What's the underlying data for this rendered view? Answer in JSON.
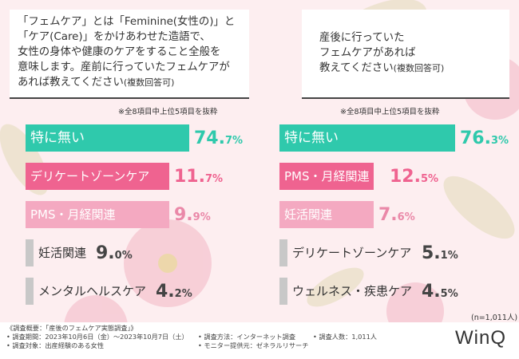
{
  "colors": {
    "teal": "#2fc9ac",
    "pink": "#ef6390",
    "light_pink": "#f4a9c1",
    "gray": "#c8c8c8",
    "background": "#fdeef0"
  },
  "left": {
    "question": [
      "「フェムケア」とは「Feminine(女性の)」と",
      "「ケア(Care)」をかけあわせた造語で、",
      "女性の身体や健康のケアをすること全般を",
      "意味します。産前に行っていたフェムケアが"
    ],
    "question_last": "あれば教えてください",
    "question_suffix": "(複数回答可)",
    "note": "※全8項目中上位5項目を抜粋"
  },
  "right": {
    "question": [
      "産後に行っていた",
      "フェムケアがあれば"
    ],
    "question_last": "教えてください",
    "question_suffix": "(複数回答可)",
    "note": "※全8項目中上位5項目を抜粋",
    "n_label": "(n=1,011人)"
  },
  "chart_data": [
    {
      "type": "bar",
      "orientation": "horizontal",
      "title": "産前に行っていたフェムケア",
      "categories": [
        "特に無い",
        "デリケートゾーンケア",
        "PMS・月経関連",
        "妊活関連",
        "メンタルヘルスケア"
      ],
      "values": [
        74.7,
        11.7,
        9.9,
        9.0,
        4.2
      ],
      "value_labels": [
        {
          "int": "74.",
          "dec": "7%"
        },
        {
          "int": "11.",
          "dec": "7%"
        },
        {
          "int": "9.",
          "dec": "9%"
        },
        {
          "int": "9.",
          "dec": "0%"
        },
        {
          "int": "4.",
          "dec": "2%"
        }
      ],
      "bar_colors": [
        "teal",
        "pink",
        "light_pink",
        "gray",
        "gray"
      ],
      "unit": "%"
    },
    {
      "type": "bar",
      "orientation": "horizontal",
      "title": "産後に行っていたフェムケア",
      "categories": [
        "特に無い",
        "PMS・月経関連",
        "妊活関連",
        "デリケートゾーンケア",
        "ウェルネス・疾患ケア"
      ],
      "values": [
        76.3,
        12.5,
        7.6,
        5.1,
        4.5
      ],
      "value_labels": [
        {
          "int": "76.",
          "dec": "3%"
        },
        {
          "int": "12.",
          "dec": "5%"
        },
        {
          "int": "7.",
          "dec": "6%"
        },
        {
          "int": "5.",
          "dec": "1%"
        },
        {
          "int": "4.",
          "dec": "5%"
        }
      ],
      "bar_colors": [
        "teal",
        "pink",
        "light_pink",
        "gray",
        "gray"
      ],
      "unit": "%"
    }
  ],
  "footer": {
    "lines": [
      "《調査概要：「産後のフェムケア実態調査」》",
      "• 調査期間：2023年10月6日（金）～2023年10月7日（土）",
      "• 調査対象：出産経験のある女性",
      "• 調査方法：インターネット調査",
      "• モニター提供元：ゼネラルリサーチ",
      "• 調査人数：1,011人"
    ],
    "logo": "WinQ"
  }
}
